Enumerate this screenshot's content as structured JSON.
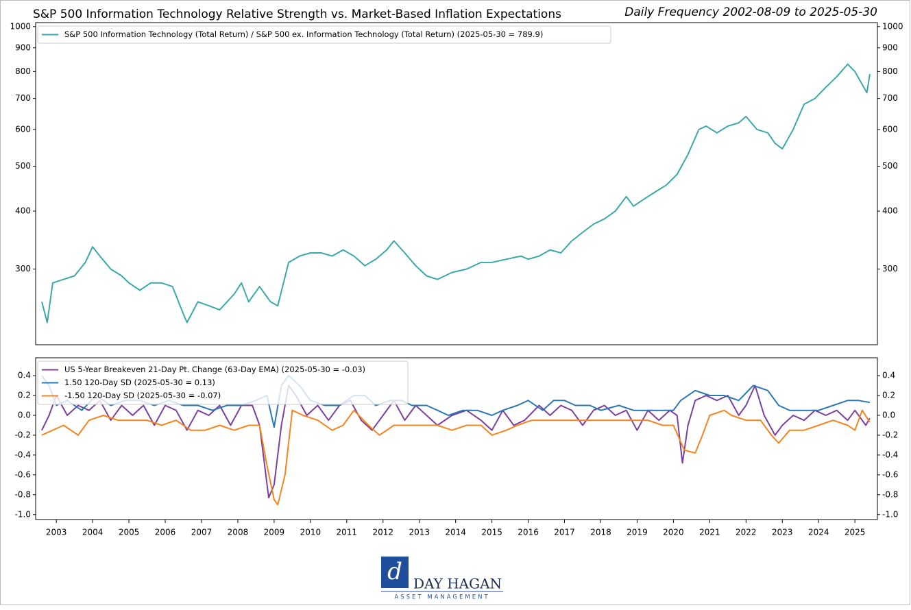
{
  "title": "S&P 500 Information Technology Relative Strength vs. Market-Based Inflation Expectations",
  "subtitle": "Daily Frequency 2002-08-09 to 2025-05-30",
  "logo": {
    "name": "DAY HAGAN",
    "tagline": "ASSET MANAGEMENT"
  },
  "chart_data": [
    {
      "type": "line",
      "log_scale": true,
      "legend": "upper left",
      "xlim": [
        2002.43,
        2025.62
      ],
      "ylim": [
        206,
        1020
      ],
      "yticks": [
        300,
        400,
        500,
        600,
        700,
        800,
        900,
        1000
      ],
      "series": [
        {
          "name": "S&P 500 Information Technology (Total Return) / S&P 500 ex. Information Technology (Total Return) (2025-05-30 = 789.9)",
          "color": "#3aa8a8",
          "x": [
            2002.6,
            2002.75,
            2002.9,
            2003.2,
            2003.5,
            2003.8,
            2004.0,
            2004.2,
            2004.5,
            2004.8,
            2005.0,
            2005.3,
            2005.6,
            2005.9,
            2006.2,
            2006.5,
            2006.6,
            2006.9,
            2007.2,
            2007.5,
            2007.9,
            2008.1,
            2008.3,
            2008.6,
            2008.9,
            2009.1,
            2009.4,
            2009.7,
            2010.0,
            2010.3,
            2010.6,
            2010.9,
            2011.2,
            2011.5,
            2011.8,
            2012.1,
            2012.3,
            2012.6,
            2012.9,
            2013.2,
            2013.5,
            2013.9,
            2014.3,
            2014.7,
            2015.0,
            2015.4,
            2015.8,
            2016.0,
            2016.3,
            2016.6,
            2016.9,
            2017.2,
            2017.5,
            2017.8,
            2018.1,
            2018.4,
            2018.7,
            2018.9,
            2019.1,
            2019.5,
            2019.8,
            2020.1,
            2020.4,
            2020.7,
            2020.9,
            2021.2,
            2021.5,
            2021.8,
            2022.0,
            2022.3,
            2022.6,
            2022.8,
            2023.0,
            2023.3,
            2023.6,
            2023.9,
            2024.2,
            2024.5,
            2024.8,
            2025.0,
            2025.2,
            2025.33,
            2025.41
          ],
          "values": [
            255,
            230,
            280,
            285,
            290,
            310,
            335,
            320,
            300,
            290,
            280,
            270,
            280,
            280,
            275,
            240,
            230,
            255,
            250,
            245,
            265,
            280,
            255,
            275,
            255,
            250,
            310,
            320,
            325,
            325,
            320,
            330,
            320,
            305,
            315,
            330,
            345,
            325,
            305,
            290,
            285,
            295,
            300,
            310,
            310,
            315,
            320,
            315,
            320,
            330,
            325,
            345,
            360,
            375,
            385,
            400,
            430,
            410,
            420,
            440,
            455,
            480,
            530,
            600,
            610,
            590,
            610,
            620,
            640,
            600,
            590,
            560,
            545,
            600,
            680,
            700,
            740,
            780,
            830,
            800,
            750,
            720,
            790
          ]
        }
      ]
    },
    {
      "type": "line",
      "legend": "upper left",
      "xlim": [
        2002.43,
        2025.62
      ],
      "ylim": [
        -1.05,
        0.58
      ],
      "xticks": [
        2003,
        2004,
        2005,
        2006,
        2007,
        2008,
        2009,
        2010,
        2011,
        2012,
        2013,
        2014,
        2015,
        2016,
        2017,
        2018,
        2019,
        2020,
        2021,
        2022,
        2023,
        2024,
        2025
      ],
      "yticks": [
        0.4,
        0.2,
        {
          "value": 0,
          "label": "0.0"
        },
        -0.2,
        -0.4,
        -0.6,
        -0.8,
        {
          "value": -1,
          "label": "-1.0"
        }
      ],
      "series": [
        {
          "name": "US 5-Year Breakeven 21-Day Pt. Change (63-Day EMA) (2025-05-30 = -0.03)",
          "color": "#7b3f9e",
          "x": [
            2002.6,
            2002.8,
            2003.0,
            2003.3,
            2003.6,
            2003.9,
            2004.2,
            2004.5,
            2004.8,
            2005.1,
            2005.4,
            2005.7,
            2006.0,
            2006.3,
            2006.6,
            2006.9,
            2007.2,
            2007.5,
            2007.8,
            2008.1,
            2008.4,
            2008.6,
            2008.85,
            2009.0,
            2009.2,
            2009.4,
            2009.6,
            2009.9,
            2010.2,
            2010.5,
            2010.8,
            2011.1,
            2011.4,
            2011.7,
            2012.0,
            2012.3,
            2012.6,
            2012.9,
            2013.2,
            2013.5,
            2013.9,
            2014.3,
            2014.7,
            2015.0,
            2015.3,
            2015.6,
            2015.9,
            2016.3,
            2016.6,
            2016.9,
            2017.2,
            2017.5,
            2017.8,
            2018.1,
            2018.4,
            2018.7,
            2019.0,
            2019.3,
            2019.6,
            2019.9,
            2020.1,
            2020.25,
            2020.4,
            2020.6,
            2020.9,
            2021.2,
            2021.5,
            2021.8,
            2022.0,
            2022.25,
            2022.5,
            2022.8,
            2023.0,
            2023.3,
            2023.6,
            2023.9,
            2024.2,
            2024.5,
            2024.8,
            2025.0,
            2025.3,
            2025.41
          ],
          "values": [
            -0.15,
            0.0,
            0.2,
            0.0,
            0.1,
            0.05,
            0.15,
            -0.05,
            0.1,
            0.0,
            0.1,
            -0.1,
            0.1,
            0.05,
            -0.15,
            0.05,
            0.0,
            0.1,
            -0.1,
            0.1,
            0.1,
            -0.1,
            -0.83,
            -0.7,
            -0.1,
            0.3,
            0.2,
            0.0,
            0.1,
            -0.05,
            0.1,
            0.15,
            -0.05,
            -0.15,
            0.0,
            0.15,
            -0.05,
            0.1,
            0.0,
            -0.1,
            0.0,
            0.05,
            -0.05,
            -0.15,
            0.05,
            -0.1,
            -0.05,
            0.1,
            0.0,
            0.1,
            0.05,
            -0.1,
            0.05,
            0.1,
            0.0,
            0.05,
            -0.15,
            0.05,
            -0.05,
            0.05,
            0.0,
            -0.48,
            -0.1,
            0.15,
            0.2,
            0.15,
            0.2,
            0.0,
            0.1,
            0.3,
            0.0,
            -0.2,
            -0.1,
            0.0,
            -0.05,
            0.05,
            0.0,
            0.05,
            -0.05,
            0.05,
            -0.1,
            -0.03
          ]
        },
        {
          "name": "1.50 120-Day SD (2025-05-30 = 0.13)",
          "color": "#2a77b4",
          "x": [
            2002.6,
            2002.8,
            2003.0,
            2003.3,
            2003.7,
            2004.1,
            2004.5,
            2004.9,
            2005.3,
            2005.7,
            2006.1,
            2006.5,
            2006.9,
            2007.3,
            2007.7,
            2008.1,
            2008.5,
            2008.8,
            2009.0,
            2009.2,
            2009.4,
            2009.7,
            2010.0,
            2010.4,
            2010.8,
            2011.2,
            2011.5,
            2011.8,
            2012.2,
            2012.5,
            2012.8,
            2013.2,
            2013.5,
            2013.8,
            2014.2,
            2014.6,
            2015.0,
            2015.3,
            2015.7,
            2016.0,
            2016.4,
            2016.7,
            2017.0,
            2017.3,
            2017.7,
            2018.0,
            2018.5,
            2018.9,
            2019.3,
            2019.7,
            2020.0,
            2020.2,
            2020.6,
            2021.0,
            2021.4,
            2021.8,
            2022.2,
            2022.6,
            2022.9,
            2023.2,
            2023.6,
            2024.0,
            2024.4,
            2024.8,
            2025.1,
            2025.41
          ],
          "values": [
            0.4,
            0.3,
            0.1,
            0.15,
            0.05,
            0.2,
            0.1,
            0.15,
            0.15,
            0.1,
            0.15,
            0.1,
            0.1,
            0.05,
            0.1,
            0.1,
            0.15,
            0.2,
            -0.12,
            0.3,
            0.4,
            0.3,
            0.15,
            0.1,
            0.1,
            0.2,
            0.2,
            0.1,
            0.15,
            0.15,
            0.1,
            0.1,
            0.05,
            0.0,
            0.05,
            0.05,
            0.0,
            0.05,
            0.1,
            0.15,
            0.05,
            0.15,
            0.15,
            0.1,
            0.1,
            0.05,
            0.1,
            0.05,
            0.05,
            0.05,
            0.05,
            0.15,
            0.25,
            0.2,
            0.2,
            0.15,
            0.3,
            0.25,
            0.1,
            0.05,
            0.05,
            0.05,
            0.1,
            0.15,
            0.15,
            0.13
          ]
        },
        {
          "name": "-1.50 120-Day SD (2025-05-30 = -0.07)",
          "color": "#f5841f",
          "x": [
            2002.6,
            2002.9,
            2003.2,
            2003.6,
            2003.9,
            2004.3,
            2004.7,
            2005.1,
            2005.5,
            2005.9,
            2006.3,
            2006.7,
            2007.1,
            2007.5,
            2007.9,
            2008.3,
            2008.6,
            2008.8,
            2009.0,
            2009.1,
            2009.3,
            2009.5,
            2009.8,
            2010.2,
            2010.6,
            2010.9,
            2011.2,
            2011.6,
            2011.9,
            2012.3,
            2012.7,
            2013.1,
            2013.5,
            2013.9,
            2014.3,
            2014.7,
            2015.0,
            2015.4,
            2015.7,
            2016.1,
            2016.5,
            2016.9,
            2017.3,
            2017.7,
            2018.1,
            2018.5,
            2018.9,
            2019.3,
            2019.7,
            2020.0,
            2020.3,
            2020.6,
            2020.8,
            2021.0,
            2021.4,
            2021.6,
            2022.0,
            2022.4,
            2022.7,
            2022.9,
            2023.2,
            2023.6,
            2024.0,
            2024.4,
            2024.8,
            2025.0,
            2025.2,
            2025.41
          ],
          "values": [
            -0.2,
            -0.15,
            -0.1,
            -0.2,
            -0.05,
            0.0,
            -0.05,
            -0.05,
            -0.05,
            -0.1,
            -0.05,
            -0.15,
            -0.15,
            -0.1,
            -0.15,
            -0.1,
            -0.1,
            -0.5,
            -0.85,
            -0.9,
            -0.6,
            0.05,
            0.0,
            -0.05,
            -0.15,
            -0.1,
            0.05,
            -0.1,
            -0.2,
            -0.1,
            -0.1,
            -0.1,
            -0.1,
            -0.15,
            -0.1,
            -0.1,
            -0.2,
            -0.15,
            -0.1,
            -0.05,
            -0.05,
            -0.05,
            -0.05,
            -0.05,
            -0.05,
            -0.05,
            -0.05,
            -0.05,
            -0.1,
            -0.1,
            -0.35,
            -0.38,
            -0.2,
            0.0,
            0.05,
            0.0,
            -0.05,
            -0.05,
            -0.2,
            -0.28,
            -0.15,
            -0.15,
            -0.1,
            -0.05,
            -0.1,
            -0.15,
            0.05,
            -0.07
          ]
        }
      ]
    }
  ]
}
